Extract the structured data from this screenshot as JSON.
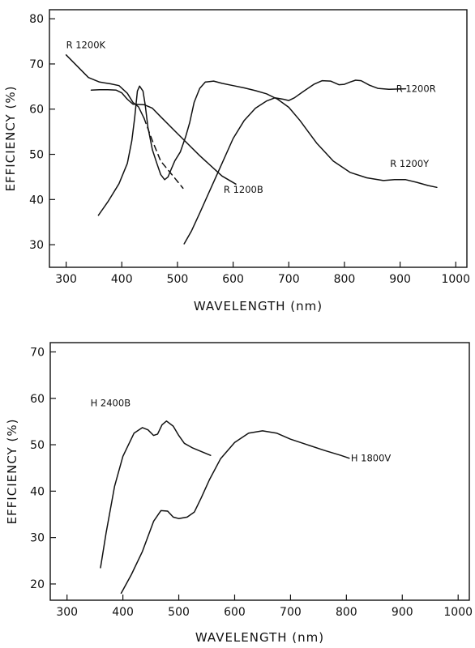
{
  "chart_data": [
    {
      "type": "line",
      "xlabel": "WAVELENGTH (nm)",
      "ylabel": "EFFICIENCY (%)",
      "xlim": [
        270,
        1020
      ],
      "ylim": [
        25,
        82
      ],
      "xticks": [
        300,
        400,
        500,
        600,
        700,
        800,
        900,
        1000
      ],
      "yticks": [
        30,
        40,
        50,
        60,
        70,
        80
      ],
      "grid": false,
      "series": [
        {
          "name": "R 1200K",
          "line": "solid",
          "label_anchor": [
            300,
            73.5
          ],
          "points": [
            [
              300,
              72
            ],
            [
              320,
              69.5
            ],
            [
              340,
              67
            ],
            [
              360,
              66
            ],
            [
              380,
              65.6
            ],
            [
              395,
              65.2
            ],
            [
              410,
              63.5
            ],
            [
              420,
              61.5
            ],
            [
              430,
              60.5
            ],
            [
              440,
              58
            ]
          ]
        },
        {
          "name": "",
          "line": "dashed",
          "points": [
            [
              440,
              58
            ],
            [
              455,
              53
            ],
            [
              470,
              48.5
            ],
            [
              490,
              45.5
            ],
            [
              510,
              42.5
            ]
          ]
        },
        {
          "name": "R 1200B",
          "line": "solid",
          "label_anchor": [
            583,
            41.5
          ],
          "points": [
            [
              345,
              64.2
            ],
            [
              360,
              64.3
            ],
            [
              375,
              64.3
            ],
            [
              390,
              64.2
            ],
            [
              400,
              63.6
            ],
            [
              410,
              62.2
            ],
            [
              420,
              61.1
            ],
            [
              440,
              61
            ],
            [
              455,
              60.2
            ],
            [
              470,
              58.3
            ],
            [
              500,
              54.6
            ],
            [
              540,
              49.7
            ],
            [
              580,
              45.2
            ],
            [
              605,
              43.4
            ]
          ]
        },
        {
          "name": "",
          "line": "solid",
          "points": [
            [
              358,
              36.5
            ],
            [
              375,
              39.5
            ],
            [
              395,
              43.5
            ],
            [
              410,
              48
            ],
            [
              418,
              53
            ],
            [
              423,
              58
            ],
            [
              428,
              64
            ],
            [
              432,
              65.1
            ],
            [
              438,
              64
            ],
            [
              442,
              61
            ],
            [
              447,
              56
            ],
            [
              455,
              51
            ],
            [
              463,
              48
            ],
            [
              470,
              45.5
            ],
            [
              477,
              44.4
            ],
            [
              483,
              45
            ],
            [
              488,
              46.5
            ],
            [
              495,
              48.5
            ],
            [
              505,
              50.5
            ],
            [
              515,
              54
            ],
            [
              522,
              57
            ],
            [
              530,
              61.5
            ],
            [
              540,
              64.6
            ],
            [
              550,
              66
            ],
            [
              565,
              66.2
            ],
            [
              580,
              65.7
            ],
            [
              600,
              65.2
            ],
            [
              620,
              64.7
            ],
            [
              640,
              64.1
            ],
            [
              660,
              63.4
            ],
            [
              680,
              62.2
            ],
            [
              700,
              60.4
            ],
            [
              720,
              57.5
            ],
            [
              750,
              52.5
            ],
            [
              780,
              48.5
            ],
            [
              810,
              46
            ],
            [
              840,
              44.8
            ],
            [
              870,
              44.2
            ],
            [
              890,
              44.4
            ],
            [
              910,
              44.4
            ],
            [
              930,
              43.8
            ],
            [
              950,
              43.1
            ],
            [
              966,
              42.7
            ]
          ]
        },
        {
          "name": "R 1200Y",
          "line": "solid",
          "label_anchor": [
            882,
            47.2
          ],
          "points": []
        },
        {
          "name": "R 1200R",
          "line": "solid",
          "label_anchor": [
            893,
            63.8
          ],
          "points": [
            [
              512,
              30.2
            ],
            [
              525,
              33
            ],
            [
              540,
              37
            ],
            [
              560,
              42.5
            ],
            [
              580,
              48
            ],
            [
              600,
              53.5
            ],
            [
              620,
              57.5
            ],
            [
              640,
              60.2
            ],
            [
              660,
              61.8
            ],
            [
              675,
              62.5
            ],
            [
              690,
              62.2
            ],
            [
              700,
              61.9
            ],
            [
              710,
              62.5
            ],
            [
              725,
              63.8
            ],
            [
              745,
              65.5
            ],
            [
              760,
              66.3
            ],
            [
              775,
              66.2
            ],
            [
              790,
              65.4
            ],
            [
              800,
              65.5
            ],
            [
              810,
              66
            ],
            [
              820,
              66.4
            ],
            [
              830,
              66.3
            ],
            [
              845,
              65.3
            ],
            [
              860,
              64.6
            ],
            [
              880,
              64.4
            ],
            [
              910,
              64.5
            ]
          ]
        }
      ]
    },
    {
      "type": "line",
      "xlabel": "WAVELENGTH (nm)",
      "ylabel": "EFFICIENCY (%)",
      "xlim": [
        270,
        1020
      ],
      "ylim": [
        16.5,
        72
      ],
      "xticks": [
        300,
        400,
        500,
        600,
        700,
        800,
        900,
        1000
      ],
      "yticks": [
        20,
        30,
        40,
        50,
        60,
        70
      ],
      "grid": false,
      "series": [
        {
          "name": "H 2400B",
          "line": "solid",
          "label_anchor": [
            342,
            58.3
          ],
          "points": [
            [
              360,
              23.5
            ],
            [
              370,
              31
            ],
            [
              385,
              41
            ],
            [
              400,
              47.5
            ],
            [
              420,
              52.5
            ],
            [
              435,
              53.7
            ],
            [
              445,
              53.2
            ],
            [
              455,
              52
            ],
            [
              462,
              52.3
            ],
            [
              470,
              54.3
            ],
            [
              478,
              55.1
            ],
            [
              490,
              54
            ],
            [
              500,
              52
            ],
            [
              510,
              50.3
            ],
            [
              525,
              49.3
            ],
            [
              545,
              48.3
            ],
            [
              557,
              47.7
            ]
          ]
        },
        {
          "name": "H 1800V",
          "line": "solid",
          "label_anchor": [
            808,
            46.4
          ],
          "points": [
            [
              397,
              18
            ],
            [
              415,
              22
            ],
            [
              435,
              27
            ],
            [
              455,
              33.5
            ],
            [
              468,
              35.8
            ],
            [
              480,
              35.7
            ],
            [
              490,
              34.4
            ],
            [
              500,
              34.1
            ],
            [
              515,
              34.4
            ],
            [
              528,
              35.5
            ],
            [
              540,
              38.5
            ],
            [
              555,
              42.5
            ],
            [
              575,
              47
            ],
            [
              600,
              50.5
            ],
            [
              625,
              52.5
            ],
            [
              650,
              53
            ],
            [
              675,
              52.5
            ],
            [
              700,
              51.2
            ],
            [
              730,
              50
            ],
            [
              760,
              48.8
            ],
            [
              790,
              47.7
            ],
            [
              805,
              47.1
            ]
          ]
        }
      ]
    }
  ]
}
